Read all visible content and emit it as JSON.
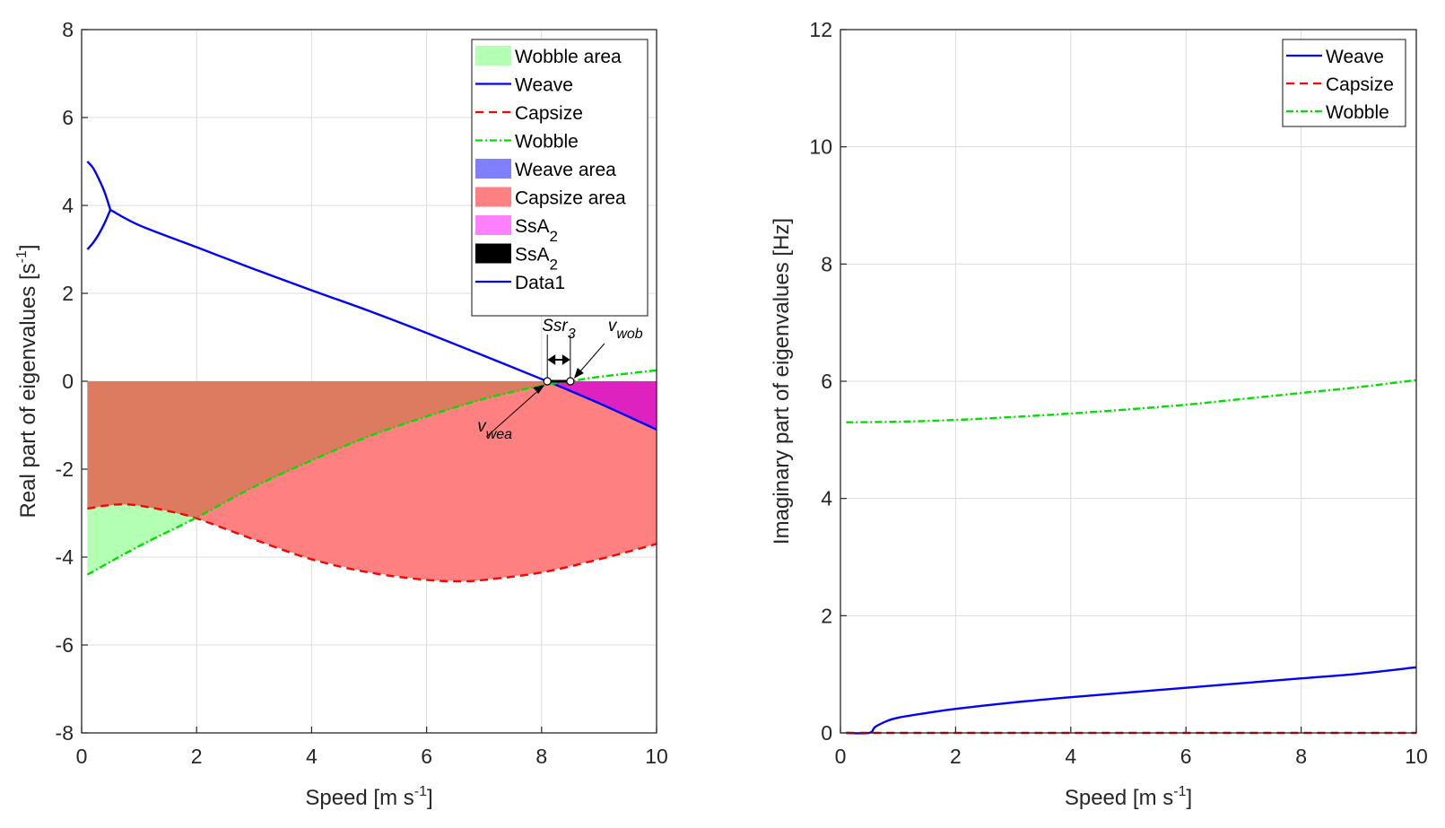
{
  "chart_data": [
    {
      "type": "line",
      "title": "",
      "xlabel": "Speed [m s^-1]",
      "xlabel_parts": {
        "main": "Speed [m s",
        "sup": "-1",
        "end": "]"
      },
      "ylabel": "Real part of eigenvalues [s^-1]",
      "ylabel_parts": {
        "main": "Real part of eigenvalues [s",
        "sup": "-1",
        "end": "]"
      },
      "xlim": [
        0,
        10
      ],
      "ylim": [
        -8,
        8
      ],
      "xticks": [
        0,
        2,
        4,
        6,
        8,
        10
      ],
      "yticks": [
        -8,
        -6,
        -4,
        -2,
        0,
        2,
        4,
        6,
        8
      ],
      "grid": true,
      "legend_position": "top-right",
      "legend": [
        {
          "label": "Wobble area",
          "kind": "patch",
          "color": "#b3ffb3"
        },
        {
          "label": "Weave",
          "kind": "line",
          "color": "#0000ff",
          "dash": "solid"
        },
        {
          "label": "Capsize",
          "kind": "line",
          "color": "#ff0000",
          "dash": "dashed"
        },
        {
          "label": "Wobble",
          "kind": "line",
          "color": "#00e000",
          "dash": "dashdot"
        },
        {
          "label": "Weave area",
          "kind": "patch",
          "color": "#8080ff"
        },
        {
          "label": "Capsize area",
          "kind": "patch",
          "color": "#ff8080"
        },
        {
          "label": "SsA",
          "sub": "2",
          "kind": "patch",
          "color": "#ff80ff"
        },
        {
          "label": "SsA",
          "sub": "2",
          "kind": "patch",
          "color": "#000000"
        },
        {
          "label": "Data1",
          "kind": "line",
          "color": "#0000ff",
          "dash": "solid"
        }
      ],
      "series": [
        {
          "name": "Weave (upper branch)",
          "color": "#0000ff",
          "dash": "solid",
          "x": [
            0.1,
            0.2,
            0.3,
            0.4,
            0.5
          ],
          "y": [
            5.0,
            4.85,
            4.6,
            4.3,
            3.9
          ]
        },
        {
          "name": "Weave (lower branch)",
          "color": "#0000ff",
          "dash": "solid",
          "x": [
            0.1,
            0.2,
            0.3,
            0.4,
            0.5
          ],
          "y": [
            3.0,
            3.15,
            3.35,
            3.6,
            3.9
          ]
        },
        {
          "name": "Weave",
          "color": "#0000ff",
          "dash": "solid",
          "x": [
            0.5,
            1,
            2,
            3,
            4,
            5,
            6,
            7,
            8,
            8.1,
            9,
            10
          ],
          "y": [
            3.9,
            3.55,
            3.05,
            2.55,
            2.07,
            1.6,
            1.1,
            0.58,
            0.05,
            0.0,
            -0.5,
            -1.1
          ]
        },
        {
          "name": "Capsize",
          "color": "#ff0000",
          "dash": "dashed",
          "x": [
            0.1,
            0.4,
            0.7,
            1,
            1.5,
            2,
            3,
            4,
            5,
            6,
            6.6,
            7,
            8,
            9,
            10
          ],
          "y": [
            -2.9,
            -2.83,
            -2.8,
            -2.83,
            -2.95,
            -3.12,
            -3.6,
            -4.05,
            -4.35,
            -4.52,
            -4.55,
            -4.52,
            -4.35,
            -4.05,
            -3.7
          ]
        },
        {
          "name": "Wobble",
          "color": "#00e000",
          "dash": "dashdot",
          "x": [
            0.1,
            1,
            2,
            3,
            4,
            5,
            6,
            7,
            8,
            8.5,
            9,
            10
          ],
          "y": [
            -4.4,
            -3.75,
            -3.1,
            -2.4,
            -1.8,
            -1.25,
            -0.8,
            -0.4,
            -0.1,
            0.0,
            0.1,
            0.25
          ]
        }
      ],
      "areas": [
        {
          "name": "Wobble area",
          "color": "#b3ffb3",
          "description": "between Wobble and Capsize for speed 0.1–1.9"
        },
        {
          "name": "Capsize area",
          "color": "#ff8080",
          "description": "between Capsize curve and 0, speed 0.1–10"
        },
        {
          "name": "Overlap (Capsize+Wobble)",
          "color": "#dd7b60",
          "description": "between Wobble curve and 0 where Wobble below 0"
        },
        {
          "name": "SsA2",
          "color": "#dd22c0",
          "description": "between Weave curve and 0 for speed 8.1–10"
        }
      ],
      "annotations": [
        {
          "text": "Ssr",
          "sub": "3",
          "x": 8.3,
          "y": 0.8
        },
        {
          "text": "v",
          "sub": "wob",
          "x": 8.5,
          "y": 0.0
        },
        {
          "text": "v",
          "sub": "wea",
          "x": 8.1,
          "y": 0.0
        }
      ],
      "markers": [
        {
          "name": "v_wea",
          "x": 8.1,
          "y": 0.0
        },
        {
          "name": "v_wob",
          "x": 8.5,
          "y": 0.0
        }
      ]
    },
    {
      "type": "line",
      "title": "",
      "xlabel": "Speed [m s^-1]",
      "xlabel_parts": {
        "main": "Speed [m s",
        "sup": "-1",
        "end": "]"
      },
      "ylabel": "Imaginary part of eigenvalues [Hz]",
      "xlim": [
        0,
        10
      ],
      "ylim": [
        0,
        12
      ],
      "xticks": [
        0,
        2,
        4,
        6,
        8,
        10
      ],
      "yticks": [
        0,
        2,
        4,
        6,
        8,
        10,
        12
      ],
      "grid": true,
      "legend_position": "top-right",
      "legend": [
        {
          "label": "Weave",
          "kind": "line",
          "color": "#0000ff",
          "dash": "solid"
        },
        {
          "label": "Capsize",
          "kind": "line",
          "color": "#ff0000",
          "dash": "dashed"
        },
        {
          "label": "Wobble",
          "kind": "line",
          "color": "#00e000",
          "dash": "dashdot"
        }
      ],
      "series": [
        {
          "name": "Weave",
          "color": "#0000ff",
          "dash": "solid",
          "x": [
            0.1,
            0.5,
            0.6,
            0.8,
            1,
            1.5,
            2,
            3,
            4,
            5,
            6,
            7,
            8,
            9,
            10
          ],
          "y": [
            0,
            0,
            0.1,
            0.2,
            0.26,
            0.34,
            0.41,
            0.52,
            0.61,
            0.69,
            0.77,
            0.85,
            0.93,
            1.01,
            1.12
          ]
        },
        {
          "name": "Capsize",
          "color": "#ff0000",
          "dash": "dashed",
          "x": [
            0.1,
            10
          ],
          "y": [
            0,
            0
          ]
        },
        {
          "name": "Wobble",
          "color": "#00e000",
          "dash": "dashdot",
          "x": [
            0.1,
            1,
            2,
            3,
            4,
            5,
            6,
            7,
            8,
            9,
            10
          ],
          "y": [
            5.3,
            5.31,
            5.34,
            5.39,
            5.45,
            5.52,
            5.6,
            5.7,
            5.8,
            5.9,
            6.02
          ]
        }
      ]
    }
  ]
}
